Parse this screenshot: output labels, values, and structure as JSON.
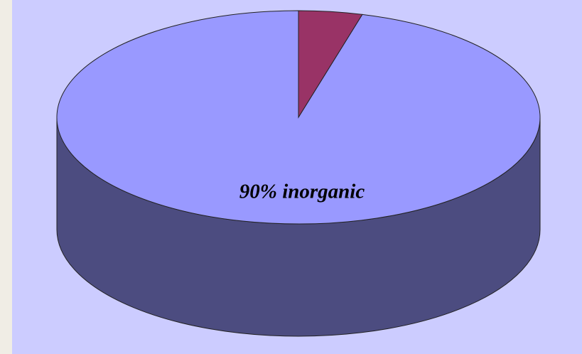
{
  "chart_data": {
    "type": "pie",
    "categories": [
      "inorganic",
      null
    ],
    "values": [
      90,
      4
    ],
    "value_labels": [
      "90% inorganic",
      null
    ],
    "colors": [
      "#9999ff",
      "#993366"
    ],
    "side_colors": [
      "#4c4c80",
      "#4d1a33"
    ],
    "background": "#ccccff"
  }
}
